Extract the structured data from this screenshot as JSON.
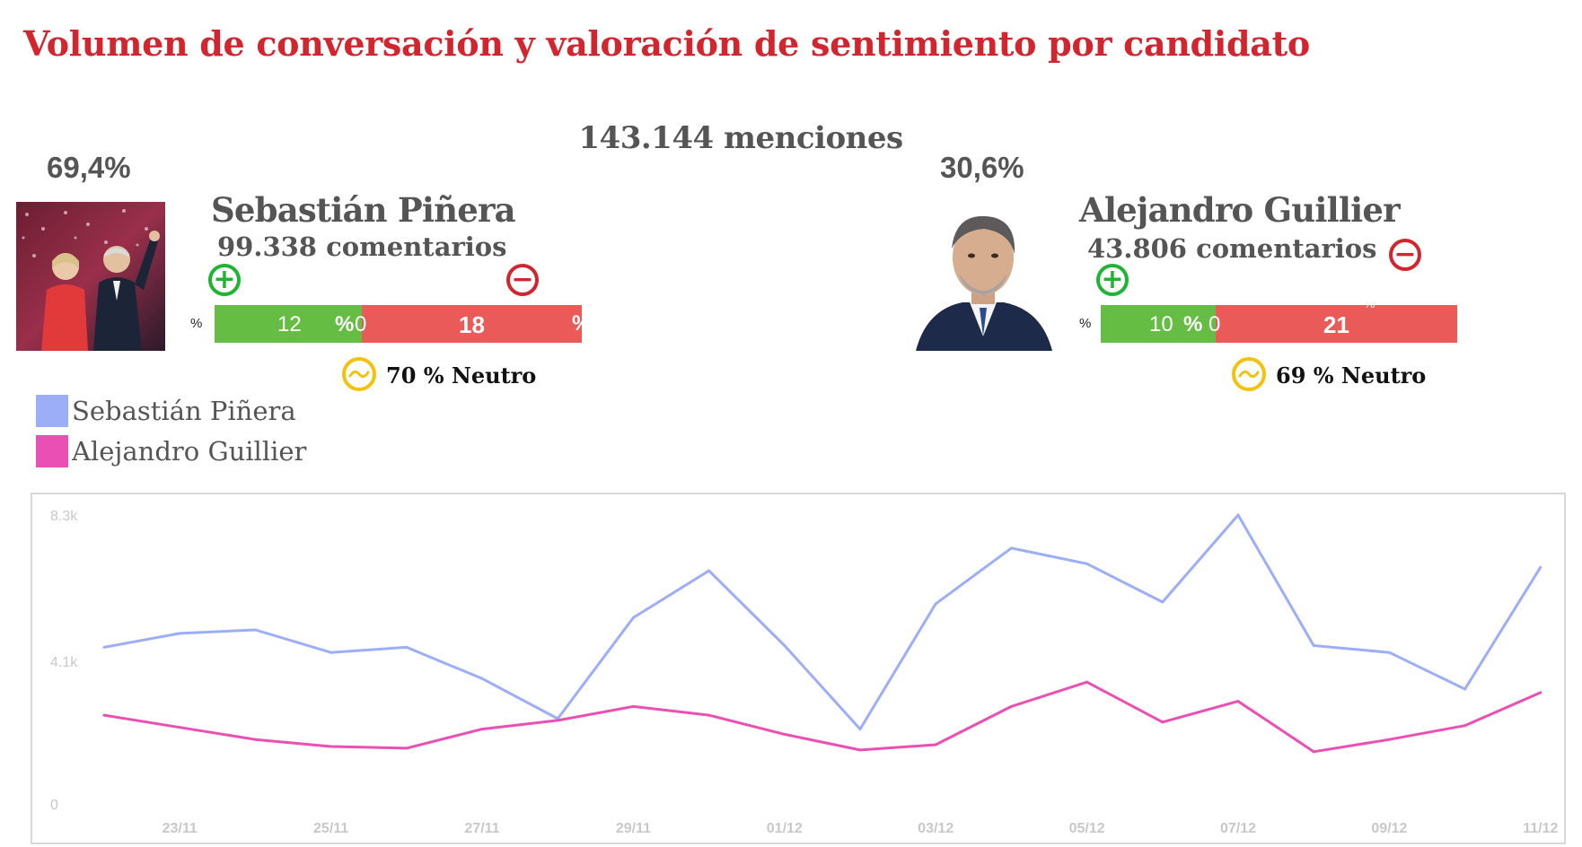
{
  "title": "Volumen de conversación y valoración de sentimiento por candidato",
  "menciones": "143.144 menciones",
  "candidates": [
    {
      "share": "69,4%",
      "name": "Sebastián Piñera",
      "comments": "99.338 comentarios",
      "positive_value": "12",
      "positive_value_zero": "0",
      "negative_value": "18",
      "percent_sign": "%",
      "neutral": "70 % Neutro",
      "plus": "+",
      "minus": "−",
      "icons": {
        "photo": "photo-pinera",
        "plus": "plus-circle-icon",
        "minus": "minus-circle-icon",
        "neutral": "neutral-face-icon"
      }
    },
    {
      "share": "30,6%",
      "name": "Alejandro Guillier",
      "comments": "43.806 comentarios",
      "positive_value": "10",
      "positive_value_zero": "0",
      "negative_value": "21",
      "percent_sign": "%",
      "neutral": "69 % Neutro",
      "plus": "+",
      "minus": "−",
      "icons": {
        "photo": "photo-guillier",
        "plus": "plus-circle-icon",
        "minus": "minus-circle-icon",
        "neutral": "neutral-face-icon"
      }
    }
  ],
  "colors": {
    "title": "#d3252e",
    "positive": "#66bd44",
    "negative": "#ea5a58",
    "neutral": "#f4c20d",
    "series_pinera": "#9daef8",
    "series_guillier": "#ea4fb3"
  },
  "legend": [
    {
      "name": "Sebastián Piñera",
      "color": "#9daef8"
    },
    {
      "name": "Alejandro Guillier",
      "color": "#ea4fb3"
    }
  ],
  "chart_data": {
    "type": "line",
    "x": [
      "22/11",
      "23/11",
      "24/11",
      "25/11",
      "26/11",
      "27/11",
      "28/11",
      "29/11",
      "30/11",
      "01/12",
      "02/12",
      "03/12",
      "04/12",
      "05/12",
      "06/12",
      "07/12",
      "08/12",
      "09/12",
      "10/12",
      "11/12"
    ],
    "x_tick_labels": [
      "23/11",
      "25/11",
      "27/11",
      "29/11",
      "01/12",
      "03/12",
      "05/12",
      "07/12",
      "09/12",
      "11/12"
    ],
    "y_tick_labels": [
      "0",
      "4.1k",
      "8.3k"
    ],
    "ylim": [
      0,
      8300
    ],
    "series": [
      {
        "name": "Sebastián Piñera",
        "color": "#9daef8",
        "values": [
          4500,
          4900,
          5000,
          4350,
          4500,
          3600,
          2450,
          5350,
          6700,
          4550,
          2150,
          5750,
          7350,
          6900,
          5800,
          8300,
          4550,
          4350,
          3300,
          6800
        ]
      },
      {
        "name": "Alejandro Guillier",
        "color": "#ea4fb3",
        "values": [
          2550,
          2200,
          1850,
          1650,
          1600,
          2150,
          2400,
          2800,
          2550,
          2000,
          1550,
          1700,
          2800,
          3500,
          2350,
          2950,
          1500,
          1850,
          2250,
          3200
        ]
      }
    ],
    "grid": false,
    "legend_placement": "top-left"
  }
}
